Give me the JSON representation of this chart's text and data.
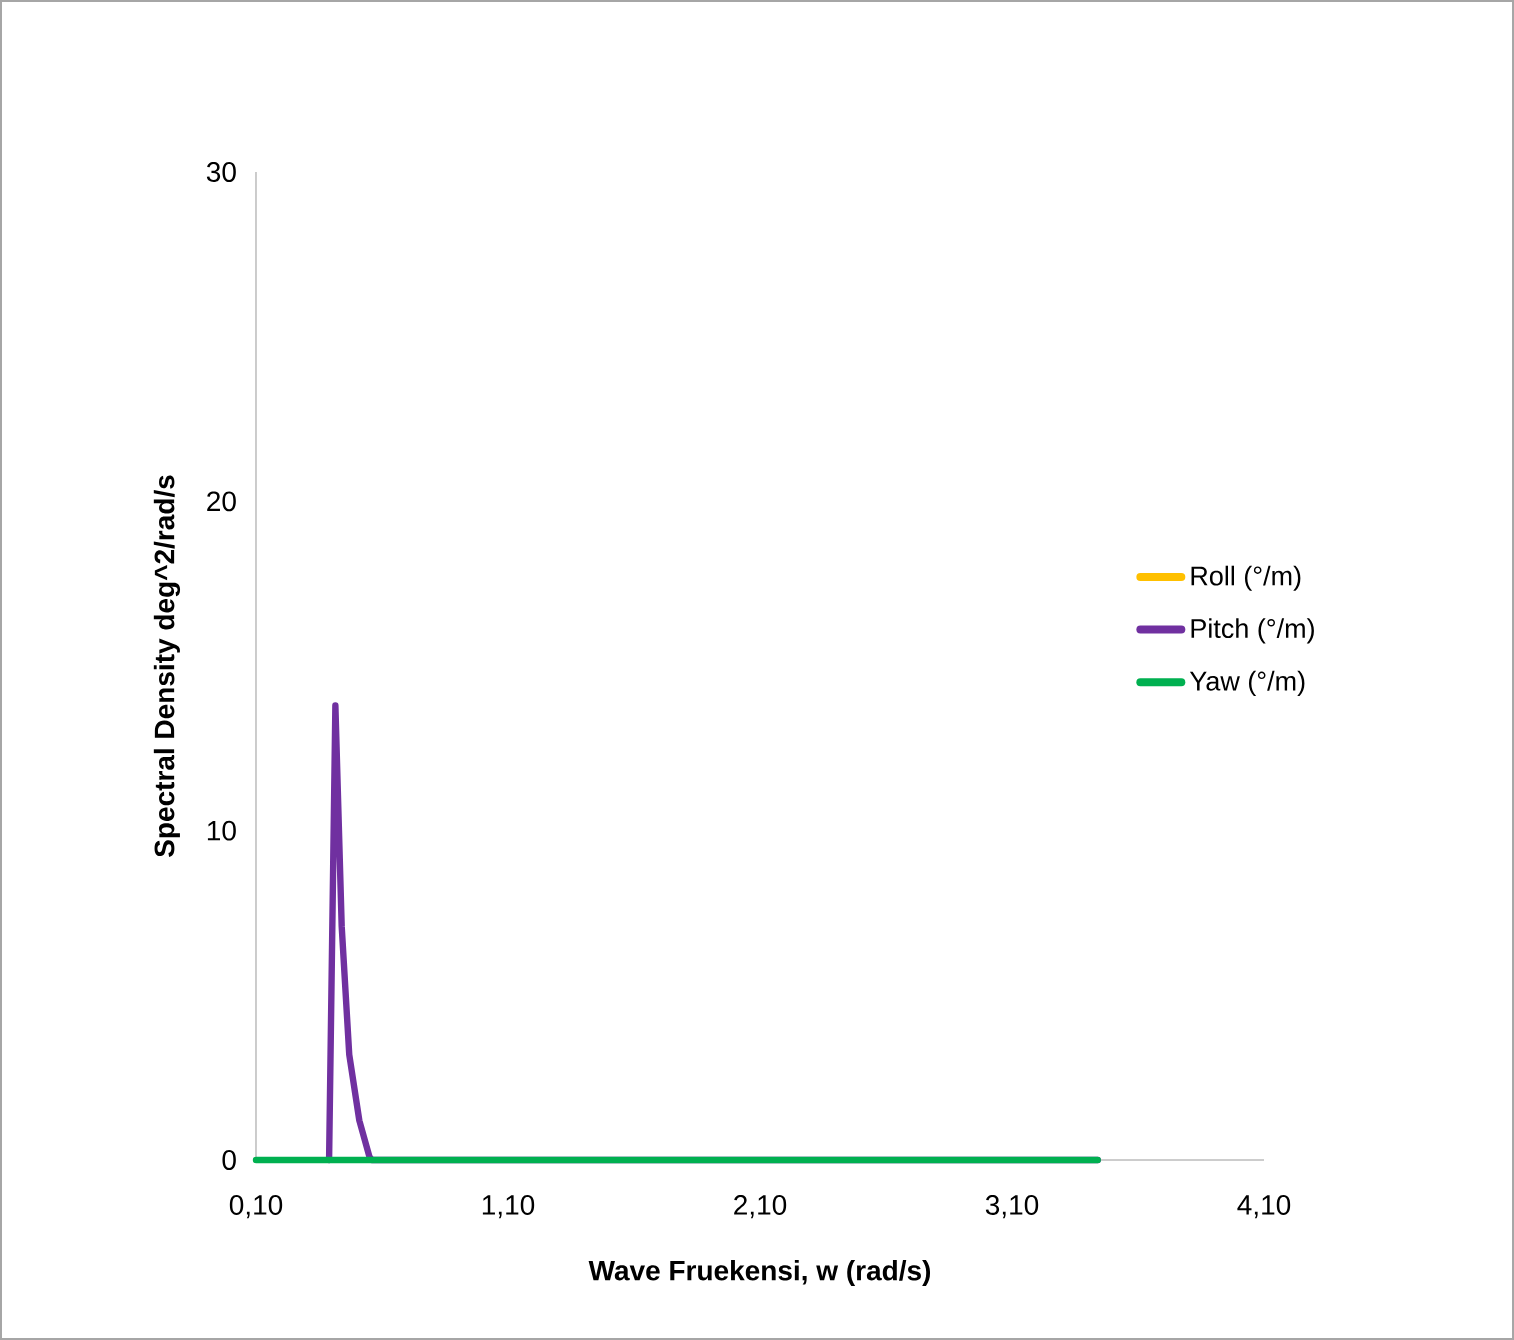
{
  "chart_data": {
    "type": "line",
    "xlabel": "Wave Fruekensi, w (rad/s)",
    "ylabel": "Spectral Density deg^2/rad/s",
    "xlim": [
      0.1,
      4.1
    ],
    "ylim": [
      0,
      30
    ],
    "xticks": [
      {
        "value": 0.1,
        "label": "0,10"
      },
      {
        "value": 1.1,
        "label": "1,10"
      },
      {
        "value": 2.1,
        "label": "2,10"
      },
      {
        "value": 3.1,
        "label": "3,10"
      },
      {
        "value": 4.1,
        "label": "4,10"
      }
    ],
    "yticks": [
      0,
      10,
      20,
      30
    ],
    "grid": false,
    "legend": "right",
    "marker": "none",
    "line_style": "solid",
    "series": [
      {
        "name": "Roll (°/m)",
        "color": "#ffc000"
      },
      {
        "name": "Pitch (°/m)",
        "color": "#7030a0",
        "x": [
          0.39,
          0.415,
          0.44,
          0.47,
          0.51,
          0.55,
          0.56,
          3.44
        ],
        "values": [
          0,
          13.8,
          7.1,
          3.2,
          1.2,
          0.1,
          0,
          0
        ]
      },
      {
        "name": "Yaw (°/m)",
        "color": "#00b050",
        "x": [
          0.1,
          3.44
        ],
        "values": [
          0,
          0
        ]
      }
    ]
  }
}
